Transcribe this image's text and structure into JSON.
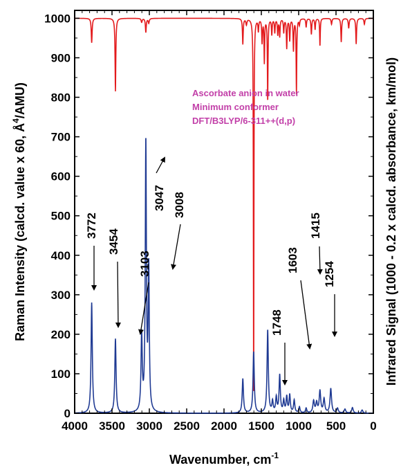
{
  "chart_data": {
    "type": "line",
    "xlabel": "Wavenumber, cm",
    "xlabel_sup": "-1",
    "ylabel_left_pre": "Raman Intensity (calcd. value x 60, Å",
    "ylabel_left_sup": "4",
    "ylabel_left_post": "/AMU)",
    "ylabel_right": "Infrared Signal (1000 - 0.2 x calcd. absorbance, km/mol)",
    "xlim": [
      4000,
      0
    ],
    "ylim": [
      0,
      1020
    ],
    "x_ticks": [
      4000,
      3500,
      3000,
      2500,
      2000,
      1500,
      1000,
      500,
      0
    ],
    "y_ticks": [
      0,
      100,
      200,
      300,
      400,
      500,
      600,
      700,
      800,
      900,
      1000
    ],
    "annotation_lines": [
      "Ascorbate anion in water",
      "Minimum conformer",
      "DFT/B3LYP/6-311++(d,p)"
    ],
    "annotation_color": "#c23fa8",
    "series": [
      {
        "kind": "raman",
        "color": "#1f3a93",
        "baseline": 0,
        "peaks": [
          {
            "x": 3772,
            "y": 280,
            "w": 10
          },
          {
            "x": 3454,
            "y": 188,
            "w": 10
          },
          {
            "x": 3103,
            "y": 193,
            "w": 10
          },
          {
            "x": 3047,
            "y": 680,
            "w": 9
          },
          {
            "x": 3008,
            "y": 356,
            "w": 9
          },
          {
            "x": 1748,
            "y": 87,
            "w": 10
          },
          {
            "x": 1603,
            "y": 155,
            "w": 10
          },
          {
            "x": 1415,
            "y": 210,
            "w": 10
          },
          {
            "x": 1350,
            "y": 28,
            "w": 10
          },
          {
            "x": 1300,
            "y": 38,
            "w": 10
          },
          {
            "x": 1254,
            "y": 95,
            "w": 10
          },
          {
            "x": 1200,
            "y": 30,
            "w": 10
          },
          {
            "x": 1160,
            "y": 40,
            "w": 10
          },
          {
            "x": 1120,
            "y": 45,
            "w": 10
          },
          {
            "x": 1060,
            "y": 32,
            "w": 10
          },
          {
            "x": 990,
            "y": 15,
            "w": 10
          },
          {
            "x": 900,
            "y": 12,
            "w": 10
          },
          {
            "x": 800,
            "y": 30,
            "w": 12
          },
          {
            "x": 760,
            "y": 25,
            "w": 12
          },
          {
            "x": 715,
            "y": 55,
            "w": 12
          },
          {
            "x": 660,
            "y": 35,
            "w": 12
          },
          {
            "x": 570,
            "y": 62,
            "w": 12
          },
          {
            "x": 480,
            "y": 12,
            "w": 12
          },
          {
            "x": 380,
            "y": 10,
            "w": 12
          },
          {
            "x": 280,
            "y": 14,
            "w": 12
          },
          {
            "x": 150,
            "y": 8,
            "w": 12
          }
        ]
      },
      {
        "kind": "infrared",
        "color": "#e31a1c",
        "baseline": 1000,
        "peaks": [
          {
            "x": 3772,
            "y": 938,
            "w": 7
          },
          {
            "x": 3454,
            "y": 815,
            "w": 6
          },
          {
            "x": 3103,
            "y": 990,
            "w": 8
          },
          {
            "x": 3047,
            "y": 965,
            "w": 7
          },
          {
            "x": 3008,
            "y": 988,
            "w": 8
          },
          {
            "x": 1748,
            "y": 935,
            "w": 6
          },
          {
            "x": 1700,
            "y": 985,
            "w": 8
          },
          {
            "x": 1603,
            "y": 0,
            "w": 4
          },
          {
            "x": 1540,
            "y": 970,
            "w": 6
          },
          {
            "x": 1490,
            "y": 940,
            "w": 6
          },
          {
            "x": 1460,
            "y": 890,
            "w": 5
          },
          {
            "x": 1415,
            "y": 790,
            "w": 5
          },
          {
            "x": 1360,
            "y": 960,
            "w": 6
          },
          {
            "x": 1320,
            "y": 965,
            "w": 6
          },
          {
            "x": 1280,
            "y": 960,
            "w": 6
          },
          {
            "x": 1254,
            "y": 955,
            "w": 6
          },
          {
            "x": 1200,
            "y": 965,
            "w": 6
          },
          {
            "x": 1160,
            "y": 925,
            "w": 6
          },
          {
            "x": 1120,
            "y": 945,
            "w": 6
          },
          {
            "x": 1070,
            "y": 920,
            "w": 6
          },
          {
            "x": 1030,
            "y": 810,
            "w": 5
          },
          {
            "x": 990,
            "y": 985,
            "w": 6
          },
          {
            "x": 900,
            "y": 978,
            "w": 6
          },
          {
            "x": 830,
            "y": 960,
            "w": 6
          },
          {
            "x": 780,
            "y": 972,
            "w": 6
          },
          {
            "x": 715,
            "y": 930,
            "w": 5
          },
          {
            "x": 560,
            "y": 985,
            "w": 7
          },
          {
            "x": 430,
            "y": 940,
            "w": 6
          },
          {
            "x": 330,
            "y": 975,
            "w": 7
          },
          {
            "x": 230,
            "y": 935,
            "w": 6
          },
          {
            "x": 120,
            "y": 985,
            "w": 7
          }
        ]
      }
    ],
    "peak_labels": [
      {
        "text": "3772",
        "peak_x": 3772,
        "peak_y": 280
      },
      {
        "text": "3454",
        "peak_x": 3454,
        "peak_y": 188
      },
      {
        "text": "3103",
        "peak_x": 3103,
        "peak_y": 193
      },
      {
        "text": "3047",
        "peak_x": 3047,
        "peak_y": 680
      },
      {
        "text": "3008",
        "peak_x": 3008,
        "peak_y": 356
      },
      {
        "text": "1748",
        "peak_x": 1748,
        "peak_y": 87
      },
      {
        "text": "1603",
        "peak_x": 1603,
        "peak_y": 155
      },
      {
        "text": "1415",
        "peak_x": 1415,
        "peak_y": 210
      },
      {
        "text": "1254",
        "peak_x": 1254,
        "peak_y": 95
      }
    ]
  }
}
